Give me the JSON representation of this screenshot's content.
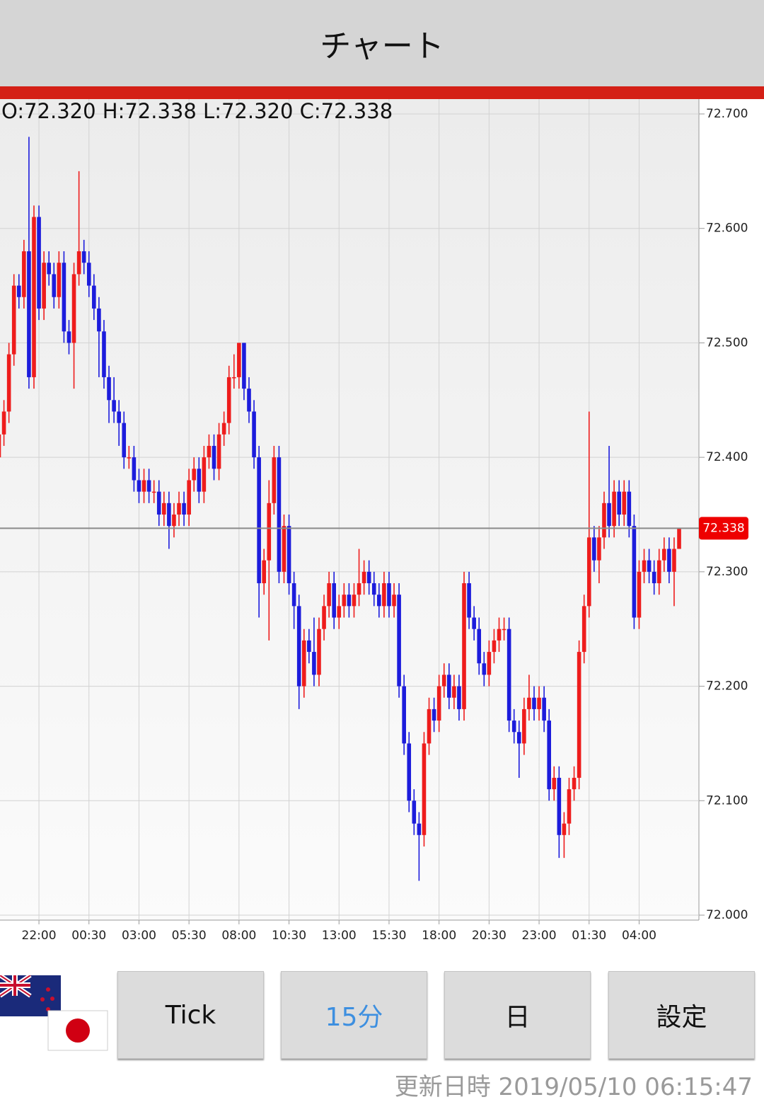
{
  "header": {
    "title": "チャート"
  },
  "chart_data": {
    "type": "candlestick",
    "ohlc_text": "O:72.320 H:72.338 L:72.320 C:72.338",
    "categories": [
      null,
      null,
      null,
      null,
      null,
      null,
      null,
      null,
      "22:00",
      null,
      null,
      null,
      null,
      null,
      null,
      null,
      null,
      null,
      "00:30",
      null,
      null,
      null,
      null,
      null,
      null,
      null,
      null,
      null,
      "03:00",
      null,
      null,
      null,
      null,
      null,
      null,
      null,
      null,
      null,
      "05:30",
      null,
      null,
      null,
      null,
      null,
      null,
      null,
      null,
      null,
      "08:00",
      null,
      null,
      null,
      null,
      null,
      null,
      null,
      null,
      null,
      "10:30",
      null,
      null,
      null,
      null,
      null,
      null,
      null,
      null,
      null,
      "13:00",
      null,
      null,
      null,
      null,
      null,
      null,
      null,
      null,
      null,
      "15:30",
      null,
      null,
      null,
      null,
      null,
      null,
      null,
      null,
      null,
      "18:00",
      null,
      null,
      null,
      null,
      null,
      null,
      null,
      null,
      null,
      "20:30",
      null,
      null,
      null,
      null,
      null,
      null,
      null,
      null,
      null,
      "23:00",
      null,
      null,
      null,
      null,
      null,
      null,
      null,
      null,
      null,
      "01:30",
      null,
      null,
      null,
      null,
      null,
      null,
      null,
      null,
      null,
      "04:00",
      null,
      null,
      null,
      null,
      null,
      null,
      null,
      null
    ],
    "open": [
      72.4,
      72.42,
      72.44,
      72.49,
      72.55,
      72.54,
      72.58,
      72.47,
      72.61,
      72.53,
      72.57,
      72.56,
      72.54,
      72.57,
      72.51,
      72.5,
      72.56,
      72.58,
      72.57,
      72.55,
      72.53,
      72.51,
      72.47,
      72.45,
      72.44,
      72.43,
      72.4,
      72.4,
      72.38,
      72.37,
      72.38,
      72.37,
      72.37,
      72.35,
      72.36,
      72.34,
      72.35,
      72.36,
      72.35,
      72.38,
      72.39,
      72.37,
      72.4,
      72.41,
      72.39,
      72.42,
      72.43,
      72.47,
      72.47,
      72.5,
      72.46,
      72.44,
      72.4,
      72.29,
      72.31,
      72.36,
      72.4,
      72.3,
      72.34,
      72.29,
      72.27,
      72.2,
      72.24,
      72.23,
      72.21,
      72.25,
      72.27,
      72.29,
      72.26,
      72.27,
      72.28,
      72.27,
      72.28,
      72.29,
      72.3,
      72.29,
      72.28,
      72.27,
      72.29,
      72.27,
      72.28,
      72.2,
      72.15,
      72.1,
      72.08,
      72.07,
      72.15,
      72.18,
      72.17,
      72.2,
      72.21,
      72.19,
      72.2,
      72.18,
      72.29,
      72.26,
      72.25,
      72.22,
      72.21,
      72.23,
      72.24,
      72.25,
      72.25,
      72.17,
      72.16,
      72.15,
      72.18,
      72.19,
      72.18,
      72.19,
      72.17,
      72.11,
      72.12,
      72.07,
      72.08,
      72.11,
      72.12,
      72.23,
      72.27,
      72.33,
      72.31,
      72.33,
      72.36,
      72.34,
      72.37,
      72.35,
      72.37,
      72.34,
      72.26,
      72.3,
      72.31,
      72.3,
      72.29,
      72.31,
      72.32,
      72.3,
      72.32
    ],
    "high": [
      72.43,
      72.45,
      72.5,
      72.56,
      72.56,
      72.59,
      72.68,
      72.62,
      72.62,
      72.58,
      72.58,
      72.57,
      72.58,
      72.58,
      72.52,
      72.57,
      72.65,
      72.59,
      72.58,
      72.56,
      72.54,
      72.52,
      72.48,
      72.47,
      72.45,
      72.44,
      72.41,
      72.41,
      72.39,
      72.39,
      72.39,
      72.38,
      72.38,
      72.37,
      72.37,
      72.36,
      72.37,
      72.37,
      72.39,
      72.4,
      72.4,
      72.41,
      72.42,
      72.42,
      72.43,
      72.44,
      72.48,
      72.49,
      72.5,
      72.5,
      72.47,
      72.45,
      72.41,
      72.32,
      72.38,
      72.41,
      72.41,
      72.35,
      72.35,
      72.3,
      72.28,
      72.25,
      72.25,
      72.26,
      72.26,
      72.28,
      72.3,
      72.3,
      72.28,
      72.29,
      72.29,
      72.29,
      72.32,
      72.31,
      72.31,
      72.3,
      72.29,
      72.3,
      72.3,
      72.29,
      72.29,
      72.21,
      72.16,
      72.11,
      72.09,
      72.16,
      72.19,
      72.19,
      72.21,
      72.22,
      72.22,
      72.21,
      72.21,
      72.3,
      72.3,
      72.27,
      72.26,
      72.23,
      72.24,
      72.25,
      72.26,
      72.26,
      72.26,
      72.18,
      72.17,
      72.19,
      72.21,
      72.2,
      72.2,
      72.2,
      72.18,
      72.13,
      72.13,
      72.09,
      72.12,
      72.13,
      72.24,
      72.28,
      72.44,
      72.34,
      72.34,
      72.37,
      72.41,
      72.38,
      72.38,
      72.38,
      72.38,
      72.35,
      72.31,
      72.32,
      72.32,
      72.31,
      72.32,
      72.33,
      72.33,
      72.33,
      72.338
    ],
    "low": [
      72.39,
      72.41,
      72.43,
      72.48,
      72.53,
      72.53,
      72.46,
      72.46,
      72.52,
      72.52,
      72.55,
      72.53,
      72.53,
      72.5,
      72.49,
      72.46,
      72.55,
      72.56,
      72.54,
      72.52,
      72.47,
      72.46,
      72.43,
      72.43,
      72.41,
      72.39,
      72.39,
      72.37,
      72.36,
      72.36,
      72.36,
      72.36,
      72.34,
      72.34,
      72.32,
      72.33,
      72.34,
      72.34,
      72.34,
      72.37,
      72.36,
      72.36,
      72.39,
      72.38,
      72.38,
      72.41,
      72.42,
      72.46,
      72.46,
      72.45,
      72.43,
      72.39,
      72.26,
      72.28,
      72.24,
      72.35,
      72.29,
      72.29,
      72.28,
      72.25,
      72.18,
      72.19,
      72.22,
      72.2,
      72.2,
      72.24,
      72.26,
      72.25,
      72.25,
      72.26,
      72.26,
      72.26,
      72.27,
      72.28,
      72.28,
      72.27,
      72.26,
      72.26,
      72.26,
      72.26,
      72.19,
      72.14,
      72.09,
      72.07,
      72.03,
      72.06,
      72.14,
      72.16,
      72.16,
      72.19,
      72.18,
      72.18,
      72.17,
      72.17,
      72.25,
      72.24,
      72.21,
      72.2,
      72.2,
      72.22,
      72.23,
      72.24,
      72.16,
      72.15,
      72.12,
      72.14,
      72.17,
      72.17,
      72.17,
      72.16,
      72.1,
      72.1,
      72.05,
      72.05,
      72.07,
      72.1,
      72.11,
      72.22,
      72.26,
      72.3,
      72.29,
      72.32,
      72.33,
      72.33,
      72.34,
      72.34,
      72.33,
      72.25,
      72.25,
      72.29,
      72.29,
      72.28,
      72.28,
      72.3,
      72.29,
      72.27,
      72.32
    ],
    "close": [
      72.42,
      72.44,
      72.49,
      72.55,
      72.54,
      72.58,
      72.47,
      72.61,
      72.53,
      72.57,
      72.56,
      72.54,
      72.57,
      72.51,
      72.5,
      72.56,
      72.58,
      72.57,
      72.55,
      72.53,
      72.51,
      72.47,
      72.45,
      72.44,
      72.43,
      72.4,
      72.4,
      72.38,
      72.37,
      72.38,
      72.37,
      72.37,
      72.35,
      72.36,
      72.34,
      72.35,
      72.36,
      72.35,
      72.38,
      72.39,
      72.37,
      72.4,
      72.41,
      72.39,
      72.42,
      72.43,
      72.47,
      72.47,
      72.5,
      72.46,
      72.44,
      72.4,
      72.29,
      72.31,
      72.36,
      72.4,
      72.3,
      72.34,
      72.29,
      72.27,
      72.2,
      72.24,
      72.23,
      72.21,
      72.25,
      72.27,
      72.29,
      72.26,
      72.27,
      72.28,
      72.27,
      72.28,
      72.29,
      72.3,
      72.29,
      72.28,
      72.27,
      72.29,
      72.27,
      72.28,
      72.2,
      72.15,
      72.1,
      72.08,
      72.07,
      72.15,
      72.18,
      72.17,
      72.2,
      72.21,
      72.19,
      72.2,
      72.18,
      72.29,
      72.26,
      72.25,
      72.22,
      72.21,
      72.23,
      72.24,
      72.25,
      72.25,
      72.17,
      72.16,
      72.15,
      72.18,
      72.19,
      72.18,
      72.19,
      72.17,
      72.11,
      72.12,
      72.07,
      72.08,
      72.11,
      72.12,
      72.23,
      72.27,
      72.33,
      72.31,
      72.33,
      72.36,
      72.34,
      72.37,
      72.35,
      72.37,
      72.34,
      72.26,
      72.3,
      72.31,
      72.3,
      72.29,
      72.31,
      72.32,
      72.3,
      72.32,
      72.338
    ],
    "up_color": "#ee1c1c",
    "down_color": "#1c1cdc",
    "last_price": 72.338,
    "ylim": [
      72.0,
      72.7
    ],
    "yticks": [
      {
        "value": 72.0,
        "label": "72.000"
      },
      {
        "value": 72.1,
        "label": "72.100"
      },
      {
        "value": 72.2,
        "label": "72.200"
      },
      {
        "value": 72.3,
        "label": "72.300"
      },
      {
        "value": 72.4,
        "label": "72.400"
      },
      {
        "value": 72.5,
        "label": "72.500"
      },
      {
        "value": 72.6,
        "label": "72.600"
      },
      {
        "value": 72.7,
        "label": "72.700"
      }
    ],
    "grid": true
  },
  "buttons": [
    "Tick",
    "15分",
    "日",
    "設定"
  ],
  "footer": "更新日時 2019/05/10 06:15:47"
}
